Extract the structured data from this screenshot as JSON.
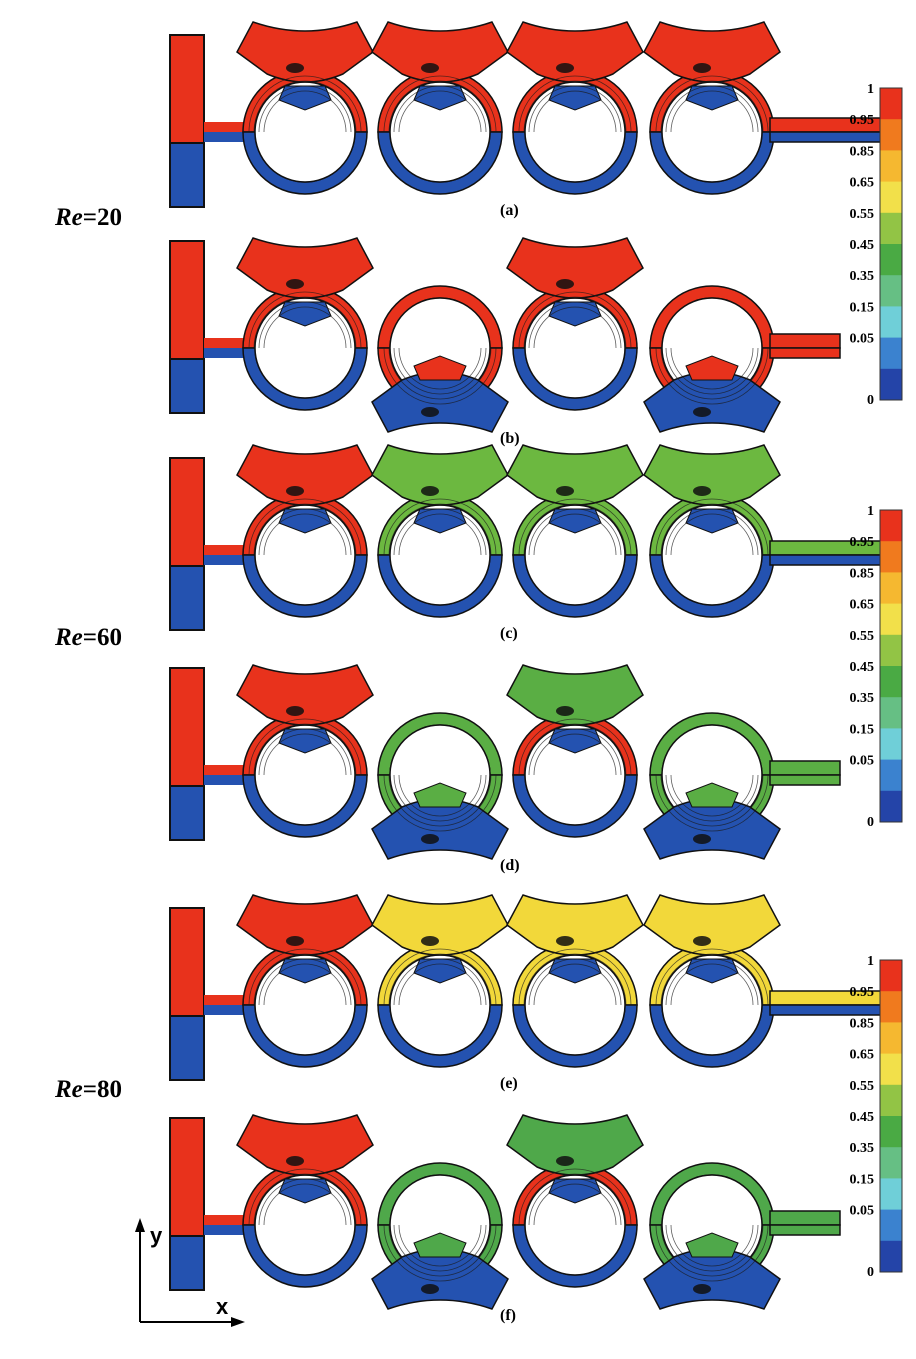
{
  "re_labels": [
    "Re=20",
    "Re=60",
    "Re=80"
  ],
  "re_label_parts": [
    {
      "italic": "Re",
      "rest": "=20"
    },
    {
      "italic": "Re",
      "rest": "=60"
    },
    {
      "italic": "Re",
      "rest": "=80"
    }
  ],
  "panels": [
    {
      "label": "(a)",
      "layout": "aligned",
      "group": 0,
      "fill": "#e8321c",
      "lower_fill": "#2452b0"
    },
    {
      "label": "(b)",
      "layout": "staggered",
      "group": 0,
      "fill": "#e8321c",
      "lower_fill": "#2452b0"
    },
    {
      "label": "(c)",
      "layout": "aligned",
      "group": 1,
      "fill": "#6cb840",
      "lower_fill": "#2452b0"
    },
    {
      "label": "(d)",
      "layout": "staggered",
      "group": 1,
      "fill": "#5aae44",
      "lower_fill": "#2452b0"
    },
    {
      "label": "(e)",
      "layout": "aligned",
      "group": 2,
      "fill": "#f2d83a",
      "lower_fill": "#2452b0"
    },
    {
      "label": "(f)",
      "layout": "staggered",
      "group": 2,
      "fill": "#4fa84a",
      "lower_fill": "#2452b0"
    }
  ],
  "colorbar": {
    "ticks": [
      "1",
      "0.95",
      "0.85",
      "0.65",
      "0.55",
      "0.45",
      "0.35",
      "0.15",
      "0.05",
      "0"
    ],
    "colors": [
      "#e8321c",
      "#f07a1e",
      "#f5b830",
      "#f2e04a",
      "#92c445",
      "#4aaa44",
      "#66bf84",
      "#6fcfd8",
      "#3b82cf",
      "#2444a8"
    ]
  },
  "axes": {
    "y": "y",
    "x": "x"
  },
  "colors": {
    "red": "#e8321c",
    "blue": "#2452b0",
    "outline": "#111111"
  }
}
